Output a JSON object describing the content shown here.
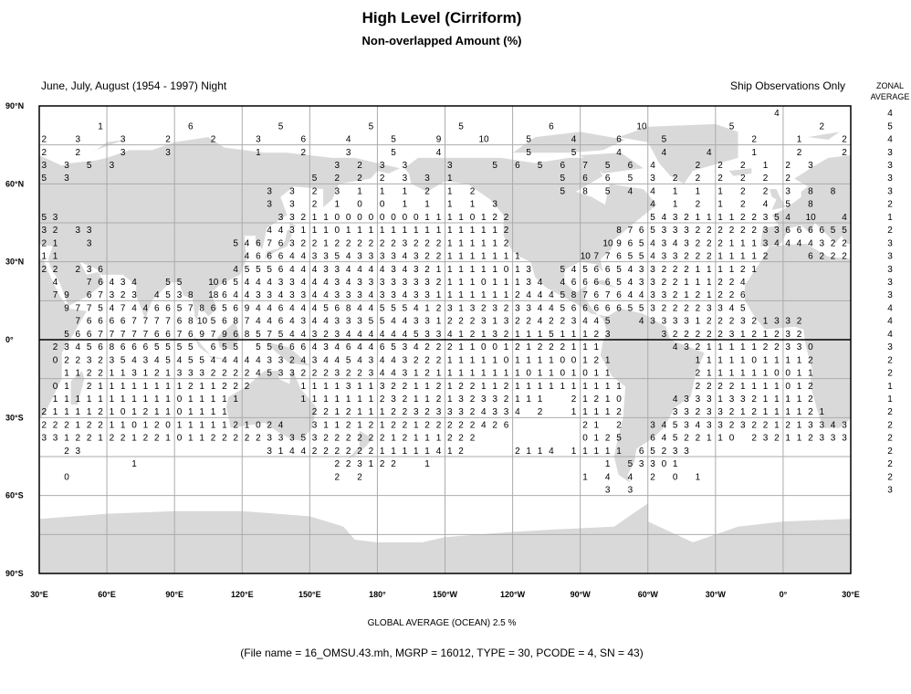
{
  "header": {
    "title": "High Level (Cirriform)",
    "subtitle": "Non-overlapped Amount (%)",
    "period": "June, July, August (1954 - 1997) Night",
    "source": "Ship Observations Only",
    "zonal_label_1": "ZONAL",
    "zonal_label_2": "AVERAGE"
  },
  "footer": {
    "global_average": "GLOBAL AVERAGE (OCEAN)   2.5 %",
    "file_info": "(File name = 16_OMSU.43.mh, MGRP = 16012, TYPE = 30, PCODE = 4, SN = 43)"
  },
  "colors": {
    "land": "#d9d9d9",
    "grid": "#ababab",
    "frame": "#000000"
  },
  "chart_data": {
    "type": "heatmap",
    "description_units": "percent cloud amount per 5x5 degree ocean box",
    "x_ticks": [
      "30°E",
      "60°E",
      "90°E",
      "120°E",
      "150°E",
      "180°",
      "150°W",
      "120°W",
      "90°W",
      "60°W",
      "30°W",
      "0°",
      "30°E"
    ],
    "y_ticks": [
      "90°N",
      "60°N",
      "30°N",
      "0°",
      "30°S",
      "60°S",
      "90°S"
    ],
    "xlim_lon_east": [
      30,
      390
    ],
    "ylim_lat": [
      -90,
      90
    ],
    "cell_size_deg": 5,
    "zonal_average": [
      4,
      5,
      4,
      3,
      3,
      3,
      3,
      2,
      1,
      2,
      3,
      3,
      3,
      3,
      3,
      4,
      4,
      4,
      3,
      2,
      2,
      1,
      1,
      2,
      2,
      2,
      2,
      2,
      2,
      3
    ],
    "rows": [
      {
        "lat": 87.5,
        "runs": [
          [
            355,
            "4"
          ]
        ]
      },
      {
        "lat": 82.5,
        "runs": [
          [
            55,
            "1"
          ],
          [
            95,
            "6"
          ],
          [
            135,
            "5"
          ],
          [
            175,
            "5"
          ],
          [
            215,
            "5"
          ],
          [
            255,
            "6"
          ],
          [
            295,
            "10"
          ],
          [
            335,
            "5"
          ],
          [
            15,
            "2"
          ]
        ]
      },
      {
        "lat": 77.5,
        "runs": [
          [
            30,
            "2"
          ],
          [
            45,
            "3"
          ],
          [
            65,
            "3"
          ],
          [
            85,
            "2"
          ],
          [
            105,
            "2"
          ],
          [
            125,
            "3"
          ],
          [
            145,
            "6"
          ],
          [
            165,
            "4"
          ],
          [
            185,
            "5"
          ],
          [
            205,
            "9"
          ],
          [
            225,
            "10"
          ],
          [
            245,
            "5"
          ],
          [
            265,
            "4"
          ],
          [
            285,
            "6"
          ],
          [
            305,
            "5"
          ],
          [
            345,
            "2"
          ],
          [
            5,
            "1"
          ],
          [
            25,
            "2"
          ]
        ]
      },
      {
        "lat": 72.5,
        "runs": [
          [
            30,
            "2"
          ],
          [
            45,
            "2"
          ],
          [
            65,
            "3"
          ],
          [
            85,
            "3"
          ],
          [
            125,
            "1"
          ],
          [
            145,
            "2"
          ],
          [
            165,
            "3"
          ],
          [
            185,
            "5"
          ],
          [
            205,
            "4"
          ],
          [
            245,
            "5"
          ],
          [
            265,
            "5"
          ],
          [
            285,
            "4"
          ],
          [
            305,
            "4"
          ],
          [
            325,
            "4"
          ],
          [
            345,
            "1"
          ],
          [
            5,
            "2"
          ],
          [
            25,
            "2"
          ]
        ]
      },
      {
        "lat": 67.5,
        "runs": [
          [
            30,
            "3"
          ],
          [
            40,
            "3"
          ],
          [
            50,
            "5"
          ],
          [
            60,
            "3"
          ],
          [
            160,
            "3"
          ],
          [
            170,
            "2"
          ],
          [
            180,
            "3"
          ],
          [
            190,
            "3"
          ],
          [
            210,
            "3"
          ],
          [
            230,
            "5"
          ],
          [
            240,
            "6"
          ],
          [
            250,
            "5"
          ],
          [
            260,
            "6"
          ],
          [
            270,
            "7"
          ],
          [
            280,
            "5"
          ],
          [
            290,
            "6"
          ],
          [
            300,
            "4"
          ],
          [
            320,
            "2"
          ],
          [
            330,
            "2"
          ],
          [
            340,
            "2"
          ],
          [
            350,
            "1"
          ],
          [
            0,
            "2"
          ],
          [
            10,
            "3"
          ]
        ]
      },
      {
        "lat": 62.5,
        "runs": [
          [
            30,
            "5"
          ],
          [
            40,
            "3"
          ],
          [
            150,
            "5"
          ],
          [
            160,
            "2"
          ],
          [
            170,
            "2"
          ],
          [
            180,
            "2"
          ],
          [
            190,
            "3"
          ],
          [
            200,
            "3"
          ],
          [
            210,
            "1"
          ],
          [
            260,
            "5"
          ],
          [
            270,
            "6"
          ],
          [
            280,
            "6"
          ],
          [
            290,
            "5"
          ],
          [
            300,
            "3"
          ],
          [
            310,
            "2"
          ],
          [
            320,
            "2"
          ],
          [
            330,
            "2"
          ],
          [
            340,
            "2"
          ],
          [
            350,
            "2"
          ],
          [
            0,
            "2"
          ]
        ]
      },
      {
        "lat": 57.5,
        "runs": [
          [
            130,
            "3"
          ],
          [
            140,
            "3"
          ],
          [
            150,
            "2"
          ],
          [
            160,
            "3"
          ],
          [
            170,
            "1"
          ],
          [
            180,
            "1"
          ],
          [
            190,
            "1"
          ],
          [
            200,
            "2"
          ],
          [
            210,
            "1"
          ],
          [
            220,
            "2"
          ],
          [
            260,
            "5"
          ],
          [
            270,
            "8"
          ],
          [
            280,
            "5"
          ],
          [
            290,
            "4"
          ],
          [
            300,
            "4"
          ],
          [
            310,
            "1"
          ],
          [
            320,
            "1"
          ],
          [
            330,
            "1"
          ],
          [
            340,
            "2"
          ],
          [
            350,
            "2"
          ],
          [
            0,
            "3"
          ],
          [
            10,
            "8"
          ],
          [
            20,
            "8"
          ]
        ]
      },
      {
        "lat": 52.5,
        "runs": [
          [
            130,
            "3"
          ],
          [
            140,
            "3"
          ],
          [
            150,
            "2"
          ],
          [
            160,
            "1"
          ],
          [
            170,
            "0"
          ],
          [
            180,
            "0"
          ],
          [
            190,
            "1"
          ],
          [
            200,
            "1"
          ],
          [
            210,
            "1"
          ],
          [
            220,
            "1"
          ],
          [
            230,
            "3"
          ],
          [
            300,
            "4"
          ],
          [
            310,
            "1"
          ],
          [
            320,
            "2"
          ],
          [
            330,
            "1"
          ],
          [
            340,
            "2"
          ],
          [
            350,
            "4"
          ],
          [
            0,
            "5"
          ],
          [
            10,
            "8"
          ]
        ]
      },
      {
        "lat": 47.5,
        "runs": [
          [
            30,
            "5 3"
          ],
          [
            135,
            "3 3 2 1 1 0 0 0 0 0 0 0 0 1 1 1 1 0 1 2 2"
          ],
          [
            300,
            "5 4 3 2 1 1 1 1 2 2 3 5 4"
          ],
          [
            10,
            "10"
          ],
          [
            25,
            "4"
          ]
        ]
      },
      {
        "lat": 42.5,
        "runs": [
          [
            30,
            "3 2"
          ],
          [
            45,
            "3 3"
          ],
          [
            130,
            "4 4 3 1 1 1 0 1 1 1 1 1 1 1 1 1 1 1 1 1 1 2"
          ],
          [
            285,
            "8 7 6 5 3 3 3 2 2 2 2 2 2 3 3 6 6 6 6 5 5"
          ]
        ]
      },
      {
        "lat": 37.5,
        "runs": [
          [
            30,
            "2 1"
          ],
          [
            50,
            "3"
          ],
          [
            115,
            "5 4 6 7 6 3 2 2 1 2 2 2 2 2 2 3 2 2 2 1 1 1 1 1 2"
          ],
          [
            280,
            "10 9 6 5 4 3 4 3 2 2 2 1 1 1 3 4 4 4 4 3 2 2"
          ]
        ]
      },
      {
        "lat": 32.5,
        "runs": [
          [
            30,
            "1 1"
          ],
          [
            120,
            "4 6 6 6 4 4 3 3 5 4 3 3 3 3 4 3 2 2 1 1 1 1 1 1 1"
          ],
          [
            270,
            "10 7 7 6 5 5 4 3 3 2 2 2 1 1 1 1 2"
          ],
          [
            10,
            "6 2 2 2"
          ]
        ]
      },
      {
        "lat": 27.5,
        "runs": [
          [
            30,
            "2 2"
          ],
          [
            45,
            "2 3 6"
          ],
          [
            115,
            "4 5 5 5 6 4 4 4 3 3 4 4 4 4 3 4 3 2 1 1 1 1 1 1 0 1 3"
          ],
          [
            260,
            "5 4 5 6 6 5 4 3 3 2 2 2 1 1 1 1 2 1"
          ]
        ]
      },
      {
        "lat": 22.5,
        "runs": [
          [
            35,
            "4"
          ],
          [
            50,
            "7 6 4 3 4"
          ],
          [
            85,
            "5 5"
          ],
          [
            105,
            "10 6 5 4 4 4 3 3 4 4 4 3 4 3 3 3 3 3 3 3 2 1 1 1 0 1 1 1 3 4"
          ],
          [
            260,
            "4 6 6 6 6 5 4 3 3 2 2 1 1 1 2 2 4"
          ]
        ]
      },
      {
        "lat": 17.5,
        "runs": [
          [
            35,
            "7 9"
          ],
          [
            50,
            "6 7 3 2 3"
          ],
          [
            80,
            "4 5 3 8"
          ],
          [
            105,
            "18 6 4 4 3 3 4 3 3 4 4 3 3 3 4 3 3 4 3 3 1 1 1 1 1 1 1 2 4 4 4 5 8 7 6 7 6 4 4 3 3 2 1 2 1 2 2 6"
          ]
        ]
      },
      {
        "lat": 12.5,
        "runs": [
          [
            40,
            "9 7 7 5 4 7 4 4 6 6 5 7 8 6 5 6 9 4 4 6 4 4 4 5 6 8 4 4 5 5 5 4 1 2 3 1 3 2 3 2 3 3 4 4 5 6 6 6 6 6 5 5 3 2 2 2 2 3 3 4 5"
          ]
        ]
      },
      {
        "lat": 7.5,
        "runs": [
          [
            45,
            "7 6 6 6 6 7 7 7 7 6 8 10 5 6 8 7 4 4 6 4 3 4 4 3 3 3 5 5 4 4 3 3 1 2 2 2 3 1 3 2 2 4 2 2 3 4 4 5"
          ],
          [
            295,
            "4 3 3 3 3 1 2 2 2 3 2 1 3 3 2"
          ]
        ]
      },
      {
        "lat": 2.5,
        "runs": [
          [
            40,
            "5 6 6 7 7 7 7 7 6 6 7 6 9 7 9 6 8 5 7 5 4 4 3 2 3 4 4 4 4 4 4 5 3 3 4 1 2 1 3 2 1 1 1 5 1 1 1 2 3"
          ],
          [
            305,
            "3 2 2 2 2 2 3 1 2 1 2 3 2"
          ]
        ]
      },
      {
        "lat": -2.5,
        "runs": [
          [
            35,
            "2 3 4 5 6 8 6 6 6 5 5 5 5"
          ],
          [
            105,
            "6 5 5"
          ],
          [
            125,
            "5 5 6 6 6 4 3 4 6 4 4 6 5 3 4 2 2 2 1 1 0 0 1 2 1 2 2 2 1 1 1"
          ],
          [
            310,
            "4 3 2 1 1 1 1 1 2 2 3 3 0"
          ]
        ]
      },
      {
        "lat": -7.5,
        "runs": [
          [
            35,
            "0 2 2 3 2 3 5 4 3 4 5 4 5 5 4 4 4 4 4 3 3 2 4 3 4 4 5 4 3 4 4 3 2 2 2 1 1 1 1 1 0 1 1 1 1 0 0 1 2 1"
          ],
          [
            320,
            "1 1 1 1 1 0 1 1 1 1 2"
          ]
        ]
      },
      {
        "lat": -12.5,
        "runs": [
          [
            40,
            "1 1 2 2 1 1 3 1 2 1 3 3 3 2 2 2 2 4 5 3 3 2 2 2 3 2 2 3 4 4 3 1 2 1 1 1 1 1 1 1 1 0 1 1 0 1 0 1 1"
          ],
          [
            320,
            "2 1 1 1 1 1 1 0 0 1 1"
          ]
        ]
      },
      {
        "lat": -17.5,
        "runs": [
          [
            35,
            "0 1"
          ],
          [
            50,
            "2 1 1 1 1 1 1 1 1 2 1 1 2 2 2"
          ],
          [
            145,
            "1 1 1 1 3 1 1 3 2 2 1 1 2 1 2 2 1 1 2 1 1 1 1 1 1 1 1 1 1"
          ],
          [
            320,
            "2 2 2 2 1 1 1 1 0 1 2"
          ]
        ]
      },
      {
        "lat": -22.5,
        "runs": [
          [
            35,
            "1 1 1 1 1 1 1 1 1 1 1 0 1 1 1 1 1"
          ],
          [
            145,
            "1 1 1 1 1 1 1 2 3 2 1 1 2 1 3 2 3 3 2 1 1 1"
          ],
          [
            265,
            "2 1 2 1 0"
          ],
          [
            310,
            "4 3 3 3 1 3 3 2 1 1 1 1 2"
          ]
        ]
      },
      {
        "lat": -27.5,
        "runs": [
          [
            30,
            "2 1 1 1 1 2 1 0 1 2 1 1 0 1 1 1 1"
          ],
          [
            150,
            "2 2 1 2 1 1 1 2 2 3 2 3 3 3 2 4 3 3 4"
          ],
          [
            250,
            "2"
          ],
          [
            265,
            "1 1 1 1 2"
          ],
          [
            310,
            "3 3 2 3 3 2 1 2 1 1 1 1 2 1"
          ]
        ]
      },
      {
        "lat": -32.5,
        "runs": [
          [
            30,
            "2 2 2 1 2 2 1 1 0 1 2 0 1 1 1 1 1 2 1 0 2 4"
          ],
          [
            150,
            "3 1 1 2 1 2 1 2 2 1 2 2 2 2 2 4 2 6"
          ],
          [
            270,
            "2 1"
          ],
          [
            285,
            "2"
          ],
          [
            300,
            "3 4 5 3 4 3 3 2 3 2 2 1 2 1 3 3 4 3"
          ]
        ]
      },
      {
        "lat": -37.5,
        "runs": [
          [
            30,
            "3 3 1 2 2 1 2 2 1 2 2 1 0 1 1 2 2 2 2 2 3 3 3 5 3 2 2 2 2 2 2 1 2 1 1 1 2 2 2"
          ],
          [
            270,
            "0 1 2 5"
          ],
          [
            300,
            "6 4 5 2 2 1 1 0"
          ],
          [
            345,
            "2 3 2 1 1 2 3 3 3"
          ]
        ]
      },
      {
        "lat": -42.5,
        "runs": [
          [
            40,
            "2 3"
          ],
          [
            130,
            "3 1 4 4 2 2 2 2 2 2 1 1 1 1 1 4 1 2"
          ],
          [
            240,
            "2 1 1 4"
          ],
          [
            265,
            "1 1 1 1 1"
          ],
          [
            295,
            "6 5 2 3 3"
          ]
        ]
      },
      {
        "lat": -47.5,
        "runs": [
          [
            70,
            "1"
          ],
          [
            160,
            "2 2 3 1 2 2"
          ],
          [
            200,
            "1"
          ],
          [
            280,
            "1"
          ],
          [
            290,
            "5 3 3 0 1"
          ]
        ]
      },
      {
        "lat": -52.5,
        "runs": [
          [
            40,
            "0"
          ],
          [
            160,
            "2"
          ],
          [
            170,
            "2"
          ],
          [
            270,
            "1"
          ],
          [
            280,
            "4"
          ],
          [
            290,
            "4"
          ],
          [
            300,
            "2"
          ],
          [
            310,
            "0"
          ],
          [
            320,
            "1"
          ]
        ]
      },
      {
        "lat": -57.5,
        "runs": [
          [
            280,
            "3"
          ],
          [
            290,
            "3"
          ]
        ]
      }
    ]
  }
}
